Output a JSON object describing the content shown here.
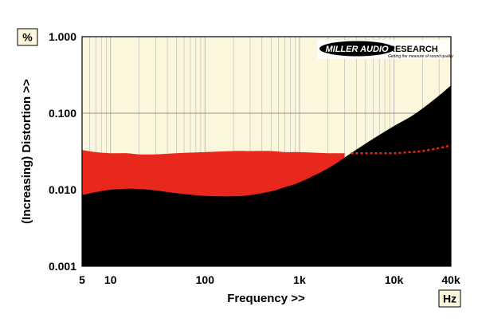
{
  "chart_data": {
    "type": "area",
    "xlabel": "Frequency >>",
    "ylabel": "(Increasing) Distortion >>",
    "x_unit": "Hz",
    "y_unit": "%",
    "xscale": "log",
    "yscale": "log",
    "xlim": [
      5,
      40000
    ],
    "ylim": [
      0.001,
      1.0
    ],
    "x_ticks": [
      5,
      10,
      100,
      1000,
      10000,
      40000
    ],
    "x_tick_labels": [
      "5",
      "10",
      "100",
      "1k",
      "10k",
      "40k"
    ],
    "y_ticks": [
      0.001,
      0.01,
      0.1,
      1.0
    ],
    "y_tick_labels": [
      "0.001",
      "0.010",
      "0.100",
      "1.000"
    ],
    "grid": true,
    "logo": {
      "left": "MILLER AUDIO",
      "right": "RESEARCH",
      "tagline": "Getting the measure of sound quality"
    },
    "colors": {
      "background": "#fbf6dc",
      "series_red": "#e8281c",
      "series_black": "#000000",
      "grid": "#b8b8b8"
    },
    "series": [
      {
        "style": "filled-area",
        "color": "#e8281c",
        "x": [
          5,
          7,
          10,
          15,
          20,
          30,
          50,
          100,
          200,
          300,
          500,
          700,
          1000,
          2000,
          3000
        ],
        "values": [
          0.033,
          0.031,
          0.03,
          0.03,
          0.029,
          0.029,
          0.03,
          0.031,
          0.032,
          0.032,
          0.032,
          0.031,
          0.031,
          0.03,
          0.03
        ]
      },
      {
        "style": "filled-area",
        "color": "#000000",
        "x": [
          5,
          7,
          10,
          15,
          20,
          30,
          50,
          100,
          200,
          300,
          500,
          700,
          1000,
          2000,
          3500,
          5000,
          7000,
          10000,
          15000,
          20000,
          30000,
          40000
        ],
        "values": [
          0.0085,
          0.0093,
          0.01,
          0.0103,
          0.0102,
          0.0098,
          0.009,
          0.0083,
          0.0082,
          0.0085,
          0.0095,
          0.0108,
          0.0125,
          0.019,
          0.03,
          0.04,
          0.052,
          0.068,
          0.09,
          0.115,
          0.17,
          0.23
        ]
      },
      {
        "style": "dotted-line",
        "color": "#e8281c",
        "x": [
          3500,
          5000,
          7000,
          10000,
          15000,
          20000,
          30000,
          40000
        ],
        "values": [
          0.03,
          0.03,
          0.03,
          0.03,
          0.031,
          0.032,
          0.035,
          0.038
        ]
      }
    ]
  }
}
